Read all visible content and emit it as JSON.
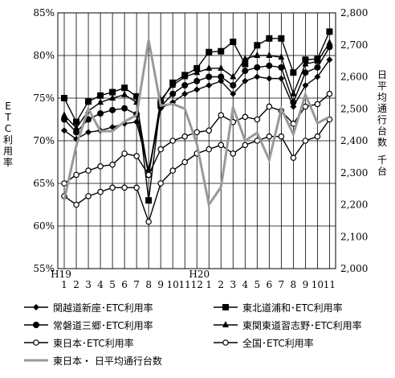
{
  "chart_data": {
    "type": "line",
    "x_year_labels": [
      "H19",
      "H20"
    ],
    "x": [
      "1",
      "2",
      "3",
      "4",
      "5",
      "6",
      "7",
      "8",
      "9",
      "10",
      "11",
      "12",
      "1",
      "2",
      "3",
      "4",
      "5",
      "6",
      "7",
      "8",
      "9",
      "10",
      "11"
    ],
    "ylabel_left": "ETC利用率",
    "ylabel_right": "日平均通行台数　千台",
    "y_left_ticks": [
      "55%",
      "60%",
      "65%",
      "70%",
      "75%",
      "80%",
      "85%"
    ],
    "y_right_ticks": [
      "2,000",
      "2,100",
      "2,200",
      "2,300",
      "2,400",
      "2,500",
      "2,600",
      "2,700",
      "2,800"
    ],
    "ylim_left": [
      55,
      85
    ],
    "ylim_right": [
      2000,
      2800
    ],
    "grid": true,
    "legend_position": "bottom",
    "series": [
      {
        "name": "関越道新座･ETC利用率",
        "marker": "diamond",
        "color": "#000000",
        "axis": "left",
        "values": [
          71.2,
          70.2,
          71.0,
          71.2,
          71.6,
          72.0,
          72.2,
          66.5,
          73.8,
          74.5,
          75.5,
          76.0,
          76.5,
          77.0,
          75.5,
          77.0,
          77.5,
          77.3,
          77.3,
          74.0,
          76.5,
          77.5,
          79.5
        ]
      },
      {
        "name": "東北道浦和･ETC利用率",
        "marker": "square",
        "color": "#000000",
        "axis": "left",
        "values": [
          75.0,
          72.2,
          74.6,
          75.3,
          75.7,
          76.2,
          75.2,
          63.0,
          74.5,
          76.8,
          77.7,
          78.5,
          80.4,
          80.5,
          81.6,
          79.0,
          81.2,
          82.0,
          82.0,
          78.0,
          79.5,
          79.6,
          82.8
        ]
      },
      {
        "name": "常磐道三郷･ETC利用率",
        "marker": "circle",
        "color": "#000000",
        "axis": "left",
        "values": [
          72.5,
          71.0,
          72.5,
          73.2,
          73.6,
          73.8,
          73.1,
          66.0,
          74.0,
          75.5,
          76.5,
          77.0,
          77.5,
          77.5,
          76.5,
          78.2,
          78.6,
          78.8,
          78.6,
          74.5,
          78.0,
          78.6,
          81.0
        ]
      },
      {
        "name": "東関東道習志野･ETC利用率",
        "marker": "triangle",
        "color": "#000000",
        "axis": "left",
        "values": [
          73.0,
          71.5,
          73.5,
          74.5,
          75.0,
          75.4,
          74.5,
          66.0,
          74.8,
          76.5,
          77.5,
          78.0,
          78.5,
          78.5,
          77.5,
          79.6,
          80.0,
          80.0,
          79.8,
          75.5,
          79.0,
          79.3,
          81.5
        ]
      },
      {
        "name": "東日本･ETC利用率",
        "marker": "open-circle",
        "color": "#000000",
        "axis": "left",
        "values": [
          63.5,
          62.5,
          63.5,
          64.0,
          64.5,
          64.5,
          64.5,
          60.5,
          65.0,
          66.5,
          67.5,
          68.5,
          69.0,
          69.5,
          68.5,
          69.5,
          70.0,
          70.5,
          70.5,
          68.0,
          70.0,
          70.5,
          72.5
        ]
      },
      {
        "name": "全国･ETC利用率",
        "marker": "open-circle",
        "color": "#000000",
        "axis": "left",
        "values": [
          65.0,
          66.0,
          66.5,
          67.0,
          67.2,
          68.5,
          68.2,
          66.0,
          69.0,
          70.0,
          70.5,
          71.0,
          71.2,
          73.0,
          72.2,
          72.8,
          72.5,
          74.0,
          73.5,
          72.0,
          74.0,
          74.3,
          75.5
        ]
      },
      {
        "name": "東日本・ 日平均通行台数",
        "marker": "none",
        "color": "#999999",
        "axis": "right",
        "values": [
          2215,
          2385,
          2500,
          2430,
          2430,
          2460,
          2480,
          2715,
          2510,
          2515,
          2500,
          2390,
          2200,
          2255,
          2505,
          2400,
          2425,
          2340,
          2500,
          2420,
          2545,
          2455,
          2475
        ]
      }
    ]
  }
}
